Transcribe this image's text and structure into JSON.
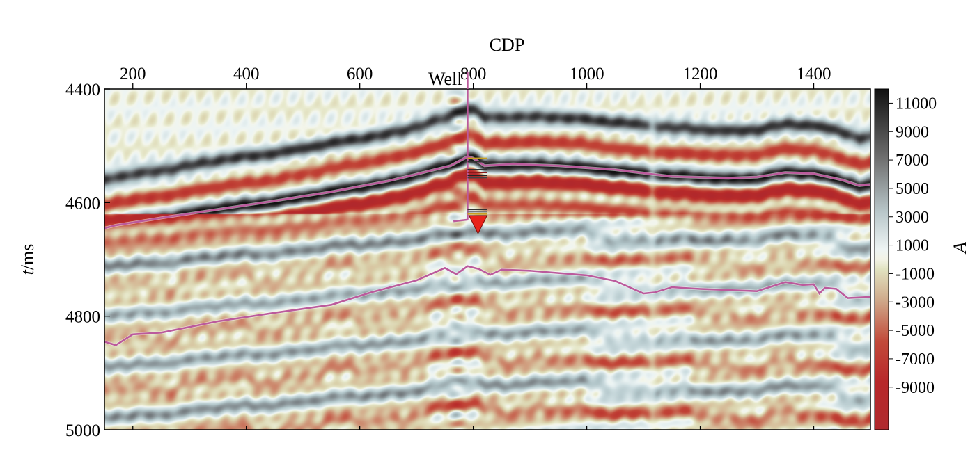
{
  "chart_data": {
    "type": "heatmap",
    "title": "",
    "xlabel": "CDP",
    "ylabel_italic": "t",
    "ylabel_rest": "/ms",
    "x_ticks": [
      200,
      400,
      600,
      800,
      1000,
      1200,
      1400
    ],
    "xlim": [
      150,
      1500
    ],
    "y_ticks": [
      4400,
      4600,
      4800,
      5000
    ],
    "ylim": [
      4400,
      5000
    ],
    "colorbar": {
      "label": "A",
      "ticks": [
        11000,
        9000,
        7000,
        5000,
        3000,
        1000,
        -1000,
        -3000,
        -5000,
        -7000,
        -9000
      ],
      "range": [
        -12000,
        12000
      ]
    },
    "well": {
      "label": "Well",
      "cdp": 790,
      "t_bottom": 4630,
      "color": "#bb5a9c"
    },
    "horizons": [
      {
        "name": "",
        "color": "#bb5a9c",
        "x": [
          150,
          170,
          250,
          350,
          450,
          550,
          650,
          700,
          740,
          760,
          775,
          790,
          800,
          820,
          870,
          950,
          1050,
          1100,
          1150,
          1250,
          1300,
          1350,
          1400,
          1450,
          1480,
          1500
        ],
        "y": [
          4645,
          4640,
          4627,
          4612,
          4597,
          4581,
          4562,
          4550,
          4540,
          4535,
          4527,
          4519,
          4522,
          4535,
          4532,
          4535,
          4542,
          4548,
          4554,
          4557,
          4555,
          4547,
          4549,
          4560,
          4570,
          4568
        ]
      },
      {
        "name": "",
        "color": "#bb5a9c",
        "x": [
          150,
          170,
          200,
          250,
          350,
          450,
          550,
          620,
          700,
          750,
          770,
          790,
          810,
          830,
          850,
          900,
          1000,
          1050,
          1100,
          1120,
          1150,
          1200,
          1300,
          1350,
          1380,
          1400,
          1410,
          1420,
          1440,
          1460,
          1500
        ],
        "y": [
          4845,
          4851,
          4832,
          4829,
          4809,
          4794,
          4780,
          4758,
          4737,
          4715,
          4726,
          4712,
          4717,
          4727,
          4718,
          4720,
          4728,
          4738,
          4760,
          4758,
          4749,
          4752,
          4756,
          4740,
          4745,
          4744,
          4760,
          4750,
          4752,
          4768,
          4766
        ]
      }
    ],
    "seismic_reflectors": [
      {
        "t0": 4460,
        "amp": 9500
      },
      {
        "t0": 4505,
        "amp": -7000
      },
      {
        "t0": 4545,
        "amp": 12000
      },
      {
        "t0": 4575,
        "amp": -11000
      },
      {
        "t0": 4615,
        "amp": -6000
      },
      {
        "t0": 4660,
        "amp": 4500
      },
      {
        "t0": 4700,
        "amp": -3500
      },
      {
        "t0": 4745,
        "amp": 3000
      },
      {
        "t0": 4790,
        "amp": -4000
      },
      {
        "t0": 4835,
        "amp": 3500
      },
      {
        "t0": 4880,
        "amp": -4500
      },
      {
        "t0": 4925,
        "amp": 4000
      },
      {
        "t0": 4970,
        "amp": -5000
      }
    ]
  }
}
